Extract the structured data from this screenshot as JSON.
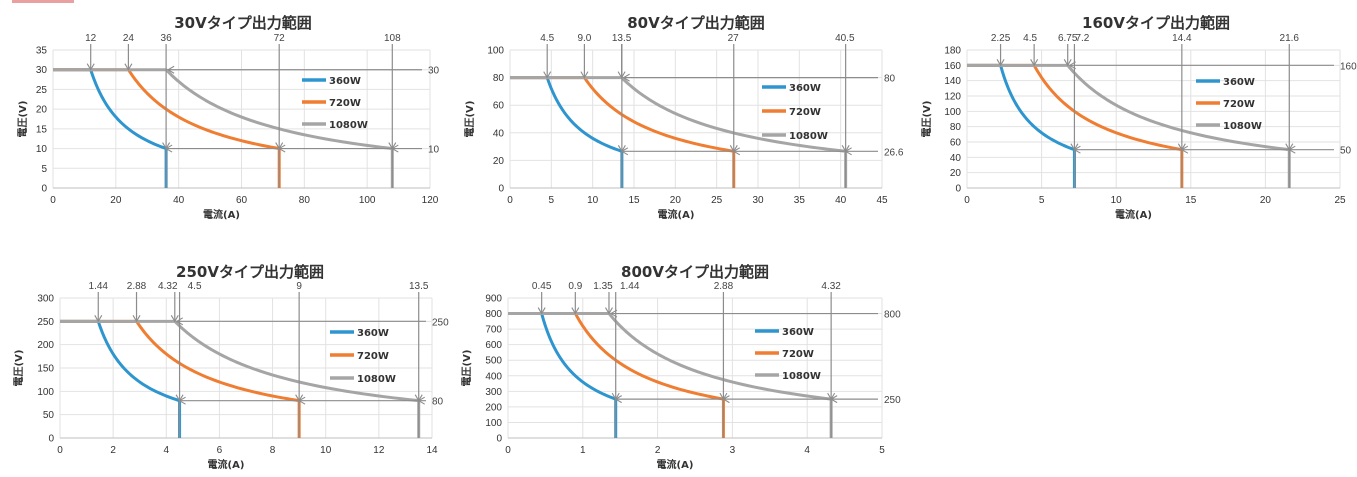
{
  "colors": {
    "s360": "#2e95cf",
    "s720": "#ef7d32",
    "s1080": "#a5a5a5",
    "grid": "#e2e2e2",
    "guide": "#8c8c8c"
  },
  "chart_data": [
    {
      "type": "line",
      "title": "30Vタイプ出力範囲",
      "xlabel": "電流(A)",
      "ylabel": "電圧(V)",
      "xlim": [
        0,
        120
      ],
      "ylim": [
        0,
        35
      ],
      "xticks": [
        0,
        20,
        40,
        60,
        80,
        100,
        120
      ],
      "yticks": [
        0,
        5,
        10,
        15,
        20,
        25,
        30,
        35
      ],
      "vmax": 30,
      "vmin": 10,
      "top_labels": [
        "12",
        "24",
        "36",
        "72",
        "108"
      ],
      "right_labels": [
        "30",
        "10"
      ],
      "series": [
        {
          "name": "360W",
          "power": 360
        },
        {
          "name": "720W",
          "power": 720
        },
        {
          "name": "1080W",
          "power": 1080
        }
      ]
    },
    {
      "type": "line",
      "title": "80Vタイプ出力範囲",
      "xlabel": "電流(A)",
      "ylabel": "電圧(V)",
      "xlim": [
        0,
        45
      ],
      "ylim": [
        0,
        100
      ],
      "xticks": [
        0,
        5,
        10,
        15,
        20,
        25,
        30,
        35,
        40,
        45
      ],
      "yticks": [
        0,
        20,
        40,
        60,
        80,
        100
      ],
      "vmax": 80,
      "vmin": 26.6,
      "top_labels": [
        "4.5",
        "9.0",
        "13.5",
        "27",
        "40.5"
      ],
      "right_labels": [
        "80",
        "26.6"
      ],
      "series": [
        {
          "name": "360W",
          "power": 360
        },
        {
          "name": "720W",
          "power": 720
        },
        {
          "name": "1080W",
          "power": 1080
        }
      ]
    },
    {
      "type": "line",
      "title": "160Vタイプ出力範囲",
      "xlabel": "電流(A)",
      "ylabel": "電圧(V)",
      "xlim": [
        0,
        25
      ],
      "ylim": [
        0,
        180
      ],
      "xticks": [
        0,
        5,
        10,
        15,
        20,
        25
      ],
      "yticks": [
        0,
        20,
        40,
        60,
        80,
        100,
        120,
        140,
        160,
        180
      ],
      "vmax": 160,
      "vmin": 50,
      "top_labels": [
        "2.25",
        "4.5",
        "6.75",
        "7.2",
        "14.4",
        "21.6"
      ],
      "right_labels": [
        "160",
        "50"
      ],
      "series": [
        {
          "name": "360W",
          "power": 360
        },
        {
          "name": "720W",
          "power": 720
        },
        {
          "name": "1080W",
          "power": 1080
        }
      ]
    },
    {
      "type": "line",
      "title": "250Vタイプ出力範囲",
      "xlabel": "電流(A)",
      "ylabel": "電圧(V)",
      "xlim": [
        0,
        14
      ],
      "ylim": [
        0,
        300
      ],
      "xticks": [
        0,
        2,
        4,
        6,
        8,
        10,
        12,
        14
      ],
      "yticks": [
        0,
        50,
        100,
        150,
        200,
        250,
        300
      ],
      "vmax": 250,
      "vmin": 80,
      "top_labels": [
        "1.44",
        "2.88",
        "4.32",
        "4.5",
        "9",
        "13.5"
      ],
      "right_labels": [
        "250",
        "80"
      ],
      "series": [
        {
          "name": "360W",
          "power": 360
        },
        {
          "name": "720W",
          "power": 720
        },
        {
          "name": "1080W",
          "power": 1080
        }
      ]
    },
    {
      "type": "line",
      "title": "800Vタイプ出力範囲",
      "xlabel": "電流(A)",
      "ylabel": "電圧(V)",
      "xlim": [
        0,
        5
      ],
      "ylim": [
        0,
        900
      ],
      "xticks": [
        0,
        1,
        2,
        3,
        4,
        5
      ],
      "yticks": [
        0,
        100,
        200,
        300,
        400,
        500,
        600,
        700,
        800,
        900
      ],
      "vmax": 800,
      "vmin": 250,
      "top_labels": [
        "0.45",
        "0.9",
        "1.35",
        "1.44",
        "2.88",
        "4.32"
      ],
      "right_labels": [
        "800",
        "250"
      ],
      "series": [
        {
          "name": "360W",
          "power": 360
        },
        {
          "name": "720W",
          "power": 720
        },
        {
          "name": "1080W",
          "power": 1080
        }
      ]
    }
  ]
}
